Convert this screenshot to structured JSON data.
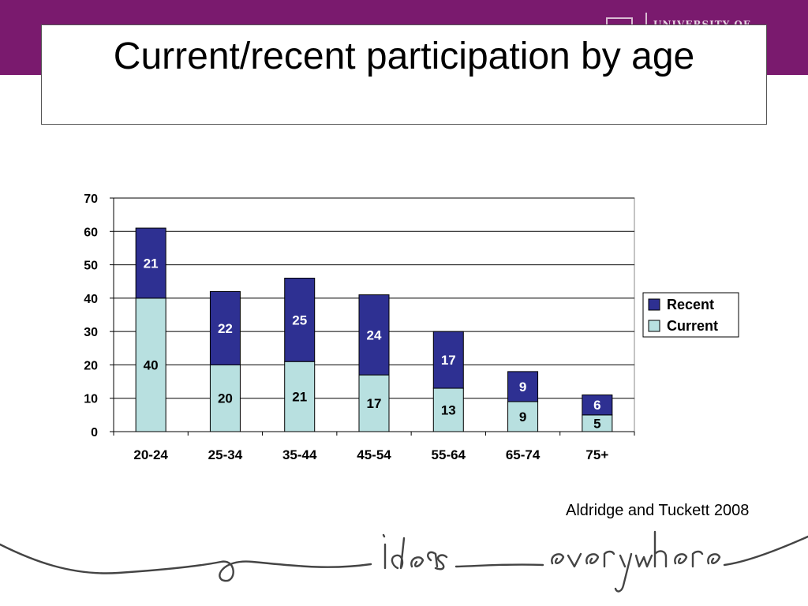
{
  "slide": {
    "title": "Current/recent participation by age",
    "citation": "Aldridge and Tuckett 2008",
    "logo_text": "UNIVERSITY OF",
    "tagline": "ideas everywhere"
  },
  "colors": {
    "band": "#7a1a6e",
    "recent": "#2e3092",
    "current": "#b8e0e0"
  },
  "chart_data": {
    "type": "bar",
    "stacked": true,
    "categories": [
      "20-24",
      "25-34",
      "35-44",
      "45-54",
      "55-64",
      "65-74",
      "75+"
    ],
    "series": [
      {
        "name": "Current",
        "values": [
          40,
          20,
          21,
          17,
          13,
          9,
          5
        ]
      },
      {
        "name": "Recent",
        "values": [
          21,
          22,
          25,
          24,
          17,
          9,
          6
        ]
      }
    ],
    "title": "",
    "xlabel": "",
    "ylabel": "",
    "ylim": [
      0,
      70
    ],
    "yticks": [
      0,
      10,
      20,
      30,
      40,
      50,
      60,
      70
    ],
    "grid": true,
    "legend": "right"
  }
}
